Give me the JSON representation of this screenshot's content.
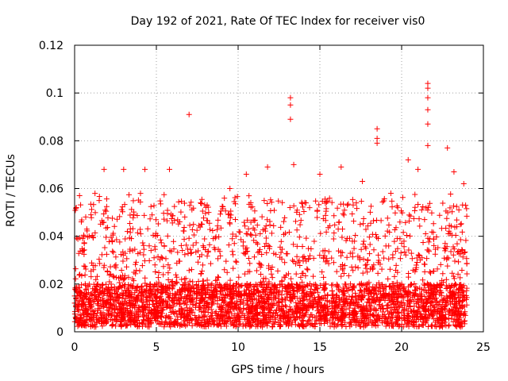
{
  "chart_data": {
    "type": "scatter",
    "title": "Day 192 of 2021, Rate Of TEC Index for receiver vis0",
    "xlabel": "GPS time / hours",
    "ylabel": "ROTI / TECUs",
    "xlim": [
      0,
      25
    ],
    "ylim": [
      0,
      0.12
    ],
    "x_ticks": [
      "0",
      "5",
      "10",
      "15",
      "20",
      "25"
    ],
    "y_ticks": [
      "0",
      "0.02",
      "0.04",
      "0.06",
      "0.08",
      "0.1",
      "0.12"
    ],
    "grid": true,
    "marker": "+",
    "marker_color": "#ff0000",
    "x_range_covered": [
      0,
      24
    ],
    "baseline_band": [
      0.002,
      0.035
    ],
    "notable_points": [
      {
        "x": 0.3,
        "y": 0.057
      },
      {
        "x": 1.8,
        "y": 0.068
      },
      {
        "x": 3.0,
        "y": 0.068
      },
      {
        "x": 4.3,
        "y": 0.068
      },
      {
        "x": 5.8,
        "y": 0.068
      },
      {
        "x": 7.0,
        "y": 0.091
      },
      {
        "x": 8.2,
        "y": 0.05
      },
      {
        "x": 9.5,
        "y": 0.06
      },
      {
        "x": 10.5,
        "y": 0.066
      },
      {
        "x": 11.8,
        "y": 0.069
      },
      {
        "x": 13.2,
        "y": 0.098
      },
      {
        "x": 13.2,
        "y": 0.095
      },
      {
        "x": 13.2,
        "y": 0.089
      },
      {
        "x": 13.4,
        "y": 0.07
      },
      {
        "x": 15.0,
        "y": 0.066
      },
      {
        "x": 16.3,
        "y": 0.069
      },
      {
        "x": 17.6,
        "y": 0.063
      },
      {
        "x": 18.5,
        "y": 0.085
      },
      {
        "x": 18.5,
        "y": 0.081
      },
      {
        "x": 18.5,
        "y": 0.079
      },
      {
        "x": 20.4,
        "y": 0.072
      },
      {
        "x": 21.0,
        "y": 0.068
      },
      {
        "x": 21.6,
        "y": 0.104
      },
      {
        "x": 21.6,
        "y": 0.102
      },
      {
        "x": 21.6,
        "y": 0.098
      },
      {
        "x": 21.6,
        "y": 0.093
      },
      {
        "x": 21.6,
        "y": 0.087
      },
      {
        "x": 21.6,
        "y": 0.078
      },
      {
        "x": 22.8,
        "y": 0.077
      },
      {
        "x": 23.2,
        "y": 0.067
      },
      {
        "x": 23.8,
        "y": 0.062
      }
    ]
  }
}
